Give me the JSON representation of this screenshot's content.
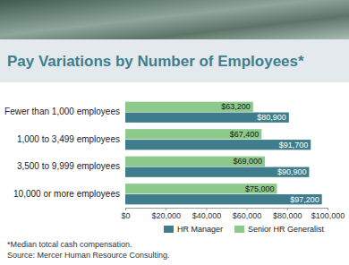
{
  "chart_data": {
    "type": "bar",
    "orientation": "horizontal",
    "title": "Pay Variations by Number of Employees*",
    "annotations": [
      "*Median totcal cash compensation.",
      "Source: Mercer Human Resource Consulting."
    ],
    "categories": [
      "Fewer than 1,000 employees",
      "1,000 to 3,499 employees",
      "3,500 to 9,999 employees",
      "10,000 or more employees"
    ],
    "series": [
      {
        "name": "HR Manager",
        "color": "#3f7d8d",
        "values": [
          80900,
          91700,
          90900,
          97200
        ],
        "value_labels": [
          "$80,900",
          "$91,700",
          "$90,900",
          "$97,200"
        ]
      },
      {
        "name": "Senior HR Generalist",
        "color": "#8cc98a",
        "values": [
          63200,
          67400,
          69000,
          75000
        ],
        "value_labels": [
          "$63,200",
          "$67,400",
          "$69,000",
          "$75,000"
        ]
      }
    ],
    "xlim": [
      0,
      100000
    ],
    "xticks": [
      {
        "value": 0,
        "label": "$0"
      },
      {
        "value": 20000,
        "label": "$20,000"
      },
      {
        "value": 40000,
        "label": "$40,000"
      },
      {
        "value": 60000,
        "label": "$60,000"
      },
      {
        "value": 80000,
        "label": "$80,000"
      },
      {
        "value": 100000,
        "label": "$100,000"
      }
    ],
    "grid": false,
    "legend": "bottom",
    "data_labels": true
  }
}
